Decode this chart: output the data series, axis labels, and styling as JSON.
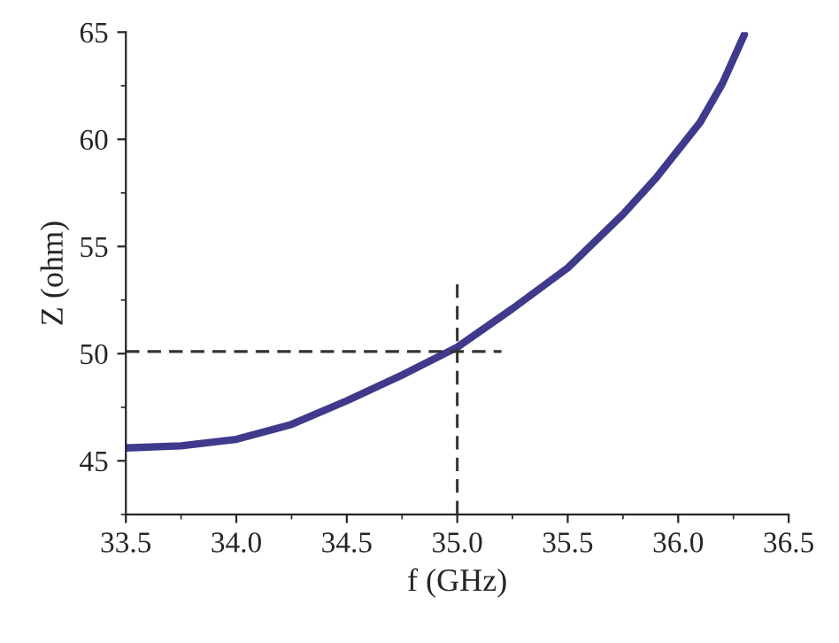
{
  "chart_data": {
    "type": "line",
    "xlabel": "f (GHz)",
    "ylabel": "Z (ohm)",
    "series": [
      {
        "x": [
          33.5,
          33.75,
          34.0,
          34.25,
          34.5,
          34.75,
          35.0,
          35.25,
          35.5,
          35.75,
          35.9,
          36.0,
          36.1,
          36.2,
          36.3
        ],
        "values": [
          45.6,
          45.7,
          46.0,
          46.7,
          47.8,
          49.0,
          50.3,
          52.1,
          54.0,
          56.5,
          58.2,
          59.5,
          60.8,
          62.6,
          64.9
        ],
        "color": "#3f3a8c",
        "line_style": "solid"
      },
      {
        "x": [
          35.0,
          35.0
        ],
        "values": [
          42.5,
          53.4
        ],
        "color": "#333333",
        "line_style": "dashed"
      },
      {
        "x": [
          33.5,
          35.2
        ],
        "values": [
          50.1,
          50.1
        ],
        "color": "#333333",
        "line_style": "dashed"
      }
    ],
    "xlim": [
      33.5,
      36.5
    ],
    "xticks": [
      {
        "value": 33.5,
        "label": "33.5"
      },
      {
        "value": 34.0,
        "label": "34.0"
      },
      {
        "value": 34.5,
        "label": "34.5"
      },
      {
        "value": 35.0,
        "label": "35.0"
      },
      {
        "value": 35.5,
        "label": "35.5"
      },
      {
        "value": 36.0,
        "label": "36.0"
      },
      {
        "value": 36.5,
        "label": "36.5"
      }
    ],
    "ylim": [
      42.5,
      65
    ],
    "yticks": [
      45,
      50,
      55,
      60,
      65
    ],
    "grid": false,
    "legend": false
  }
}
